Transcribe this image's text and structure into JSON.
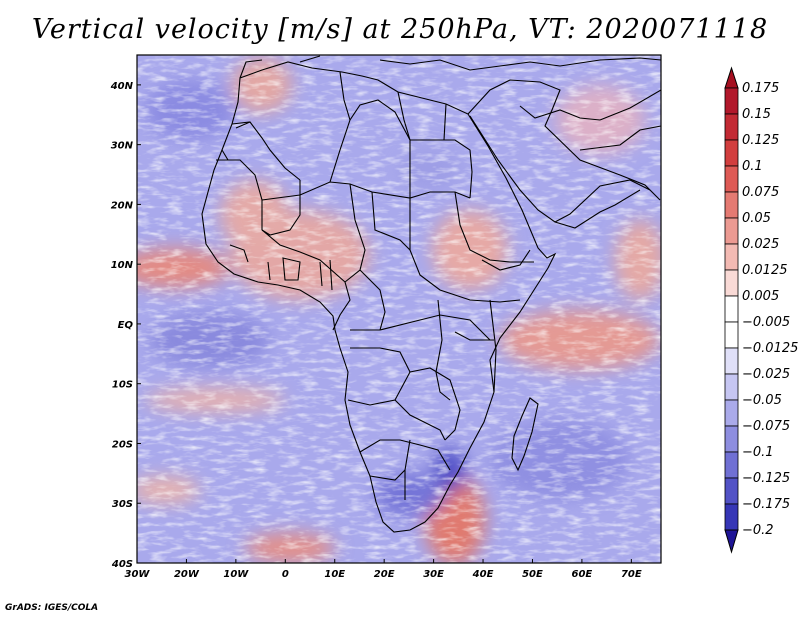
{
  "figure": {
    "title": "Vertical velocity [m/s] at 250hPa, VT: 2020071118",
    "footer": "GrADS: IGES/COLA"
  },
  "map": {
    "variable": "Vertical velocity",
    "units": "m/s",
    "level": "250hPa",
    "valid_time": "2020071118",
    "lon_range": [
      -30,
      76
    ],
    "lat_range": [
      -40,
      45
    ],
    "lon_ticks": [
      {
        "value": -30,
        "label": "30W"
      },
      {
        "value": -20,
        "label": "20W"
      },
      {
        "value": -10,
        "label": "10W"
      },
      {
        "value": 0,
        "label": "0"
      },
      {
        "value": 10,
        "label": "10E"
      },
      {
        "value": 20,
        "label": "20E"
      },
      {
        "value": 30,
        "label": "30E"
      },
      {
        "value": 40,
        "label": "40E"
      },
      {
        "value": 50,
        "label": "50E"
      },
      {
        "value": 60,
        "label": "60E"
      },
      {
        "value": 70,
        "label": "70E"
      }
    ],
    "lat_ticks": [
      {
        "value": 40,
        "label": "40N"
      },
      {
        "value": 30,
        "label": "30N"
      },
      {
        "value": 20,
        "label": "20N"
      },
      {
        "value": 10,
        "label": "10N"
      },
      {
        "value": 0,
        "label": "EQ"
      },
      {
        "value": -10,
        "label": "10S"
      },
      {
        "value": -20,
        "label": "20S"
      },
      {
        "value": -30,
        "label": "30S"
      },
      {
        "value": -40,
        "label": "40S"
      }
    ]
  },
  "colorbar": {
    "levels": [
      {
        "label": "0.175",
        "color": "#b2182b"
      },
      {
        "label": "0.15",
        "color": "#c32a34"
      },
      {
        "label": "0.125",
        "color": "#d23e3e"
      },
      {
        "label": "0.1",
        "color": "#de5a55"
      },
      {
        "label": "0.075",
        "color": "#e57a72"
      },
      {
        "label": "0.05",
        "color": "#ec9a92"
      },
      {
        "label": "0.025",
        "color": "#f3bab3"
      },
      {
        "label": "0.0125",
        "color": "#f9dad6"
      },
      {
        "label": "0.005",
        "color": "#ffffff"
      },
      {
        "label": "-0.005",
        "color": "#ffffff"
      },
      {
        "label": "-0.0125",
        "color": "#e0e0f8"
      },
      {
        "label": "-0.025",
        "color": "#c6c6f2"
      },
      {
        "label": "-0.05",
        "color": "#aaaaea"
      },
      {
        "label": "-0.075",
        "color": "#8e8ee0"
      },
      {
        "label": "-0.1",
        "color": "#7070d4"
      },
      {
        "label": "-0.125",
        "color": "#5252c6"
      },
      {
        "label": "-0.175",
        "color": "#3636b6"
      },
      {
        "label": "-0.2",
        "color": "#2020a4"
      }
    ],
    "top_arrow_color": "#a50f20",
    "bottom_arrow_color": "#1e1496"
  }
}
